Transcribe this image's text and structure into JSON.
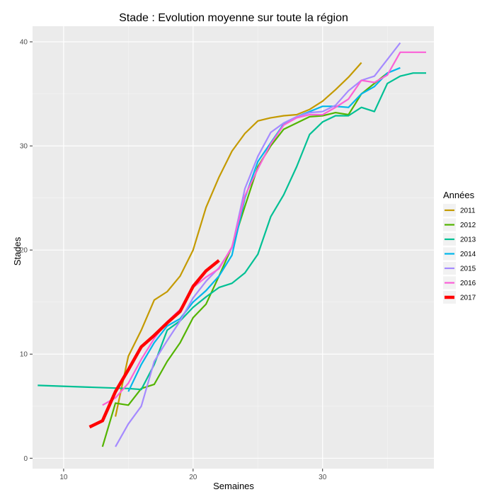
{
  "chart_data": {
    "type": "line",
    "title": "Stade : Evolution moyenne sur toute la région",
    "xlabel": "Semaines",
    "ylabel": "Stades",
    "xlim": [
      7.6,
      38.6
    ],
    "ylim": [
      -1,
      41.5
    ],
    "xticks": [
      10,
      20,
      30
    ],
    "yticks": [
      0,
      10,
      20,
      30,
      40
    ],
    "grid": true,
    "legend": {
      "title": "Années",
      "position": "right"
    },
    "series": [
      {
        "name": "2011",
        "color": "#c49a00",
        "x": [
          14,
          15,
          16,
          17,
          18,
          19,
          20,
          21,
          22,
          23,
          24,
          25,
          26,
          27,
          28,
          29,
          30,
          31,
          32,
          33
        ],
        "y": [
          4,
          9.8,
          12.3,
          15.2,
          16,
          17.5,
          20,
          24.1,
          27,
          29.5,
          31.2,
          32.4,
          32.7,
          32.9,
          33,
          33.5,
          34.3,
          35.4,
          36.6,
          38
        ]
      },
      {
        "name": "2012",
        "color": "#53b400",
        "x": [
          13,
          14,
          15,
          16,
          17,
          18,
          19,
          20,
          21,
          22,
          23,
          24,
          25,
          26,
          27,
          28,
          29,
          30,
          31,
          32,
          33,
          34,
          35
        ],
        "y": [
          1.1,
          5.3,
          5.1,
          6.7,
          7.1,
          9.3,
          11.1,
          13.5,
          14.8,
          17.5,
          20.3,
          24.2,
          28,
          30,
          31.6,
          32.2,
          32.8,
          32.9,
          33.2,
          33,
          35,
          36,
          37
        ]
      },
      {
        "name": "2013",
        "color": "#00c094",
        "x": [
          8,
          15,
          16,
          17,
          18,
          19,
          20,
          21,
          22,
          23,
          24,
          25,
          26,
          27,
          28,
          29,
          30,
          31,
          32,
          33,
          34,
          35,
          36,
          37,
          38
        ],
        "y": [
          7,
          6.7,
          6.6,
          9,
          12.3,
          13.2,
          14.5,
          15.5,
          16.4,
          16.8,
          17.8,
          19.6,
          23.2,
          25.3,
          28,
          31.1,
          32.3,
          32.9,
          32.9,
          33.7,
          33.3,
          36,
          36.7,
          37,
          37
        ]
      },
      {
        "name": "2014",
        "color": "#00b6eb",
        "x": [
          15,
          16,
          17,
          18,
          19,
          20,
          21,
          22,
          23,
          24,
          25,
          26,
          27,
          28,
          29,
          30,
          31,
          32,
          33,
          34,
          35,
          36
        ],
        "y": [
          6.4,
          9,
          11.1,
          12.7,
          13.4,
          15,
          16.1,
          17.5,
          19.5,
          25,
          28.5,
          30.3,
          32.1,
          32.8,
          33.3,
          33.8,
          33.8,
          33.7,
          35,
          35.7,
          37,
          37.5
        ]
      },
      {
        "name": "2015",
        "color": "#a58aff",
        "x": [
          14,
          15,
          16,
          17,
          18,
          19,
          20,
          21,
          22,
          23,
          24,
          25,
          26,
          27,
          28,
          29,
          30,
          31,
          32,
          33,
          34,
          35,
          36
        ],
        "y": [
          1.1,
          3.3,
          5,
          9.3,
          11.3,
          13.2,
          15.4,
          17,
          18.3,
          20.2,
          25.9,
          29,
          31.3,
          32.2,
          32.8,
          33.2,
          33.3,
          33.9,
          35.3,
          36.3,
          36.7,
          38.3,
          39.9
        ]
      },
      {
        "name": "2016",
        "color": "#fb61d7",
        "x": [
          13,
          14,
          15,
          16,
          17,
          18,
          19,
          20,
          21,
          22,
          23,
          24,
          25,
          26,
          27,
          28,
          29,
          30,
          31,
          32,
          33,
          34,
          35,
          36,
          37,
          38
        ],
        "y": [
          5.1,
          5.8,
          7.2,
          9.5,
          11.5,
          13.1,
          14.3,
          16.4,
          17.4,
          18.2,
          20.3,
          25.2,
          27.8,
          30.2,
          32,
          32.7,
          33,
          33,
          33.7,
          34.5,
          36.3,
          36.1,
          36.8,
          39,
          39,
          39
        ]
      },
      {
        "name": "2017",
        "color": "#ff0000",
        "x": [
          12,
          13,
          14,
          15,
          16,
          17,
          18,
          19,
          20,
          21,
          22
        ],
        "y": [
          3,
          3.6,
          6.4,
          8.5,
          10.7,
          11.8,
          13,
          14.1,
          16.5,
          18,
          19
        ]
      }
    ]
  }
}
